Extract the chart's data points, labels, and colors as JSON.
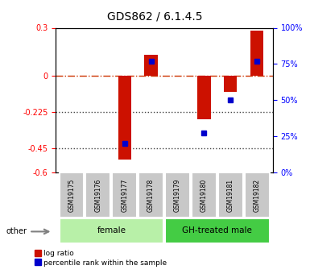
{
  "title": "GDS862 / 6.1.4.5",
  "samples": [
    "GSM19175",
    "GSM19176",
    "GSM19177",
    "GSM19178",
    "GSM19179",
    "GSM19180",
    "GSM19181",
    "GSM19182"
  ],
  "log_ratio": [
    0.0,
    0.0,
    -0.52,
    0.13,
    0.0,
    -0.27,
    -0.1,
    0.28
  ],
  "percentile_rank": [
    null,
    null,
    20,
    77,
    null,
    27,
    50,
    77
  ],
  "groups": [
    {
      "label": "female",
      "start": 0,
      "end": 3,
      "color": "#b8f0a8"
    },
    {
      "label": "GH-treated male",
      "start": 4,
      "end": 7,
      "color": "#44cc44"
    }
  ],
  "ylim": [
    -0.6,
    0.3
  ],
  "yticks_left": [
    0.3,
    0.0,
    -0.225,
    -0.45,
    -0.6
  ],
  "yticks_right": [
    100,
    75,
    50,
    25,
    0
  ],
  "bar_color": "#cc1100",
  "percentile_color": "#0000cc",
  "hline_color": "#cc3300",
  "dot_line_color": "#444444",
  "bar_width": 0.5,
  "legend_labels": [
    "log ratio",
    "percentile rank within the sample"
  ],
  "other_label": "other",
  "sample_box_color": "#c8c8c8",
  "title_fontsize": 10,
  "tick_fontsize": 7,
  "label_fontsize": 5.5,
  "group_fontsize": 7.5,
  "legend_fontsize": 6.5,
  "other_fontsize": 7
}
